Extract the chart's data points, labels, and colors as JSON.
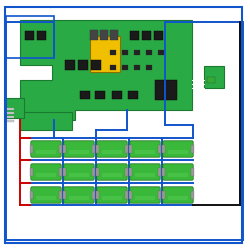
{
  "bg_color": "#ffffff",
  "blue": "#1155cc",
  "black": "#111111",
  "red": "#cc0000",
  "board_green": "#2aaa45",
  "board_edge": "#1a7a30",
  "yellow": "#f0c000",
  "battery_green": "#3ab83a",
  "battery_edge": "#1a6a1a",
  "battery_cap": "#999999",
  "small_board": "#2aaa45",
  "white": "#ffffff",
  "dark_comp": "#1a1a1a",
  "lw": 1.4,
  "bat_cols": 5,
  "bat_rows": 3
}
